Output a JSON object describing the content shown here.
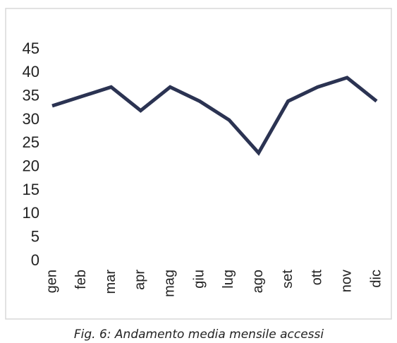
{
  "chart_data": {
    "type": "line",
    "caption": "Fig. 6: Andamento media mensile accessi",
    "categories": [
      "gen",
      "feb",
      "mar",
      "apr",
      "mag",
      "giu",
      "lug",
      "ago",
      "set",
      "ott",
      "nov",
      "dic"
    ],
    "values": [
      33,
      35,
      37,
      32,
      37,
      34,
      30,
      23,
      34,
      37,
      39,
      34
    ],
    "color": "#2b3352",
    "ylim": [
      0,
      45
    ],
    "yticks": [
      0,
      5,
      10,
      15,
      20,
      25,
      30,
      35,
      40,
      45
    ],
    "grid": false
  }
}
